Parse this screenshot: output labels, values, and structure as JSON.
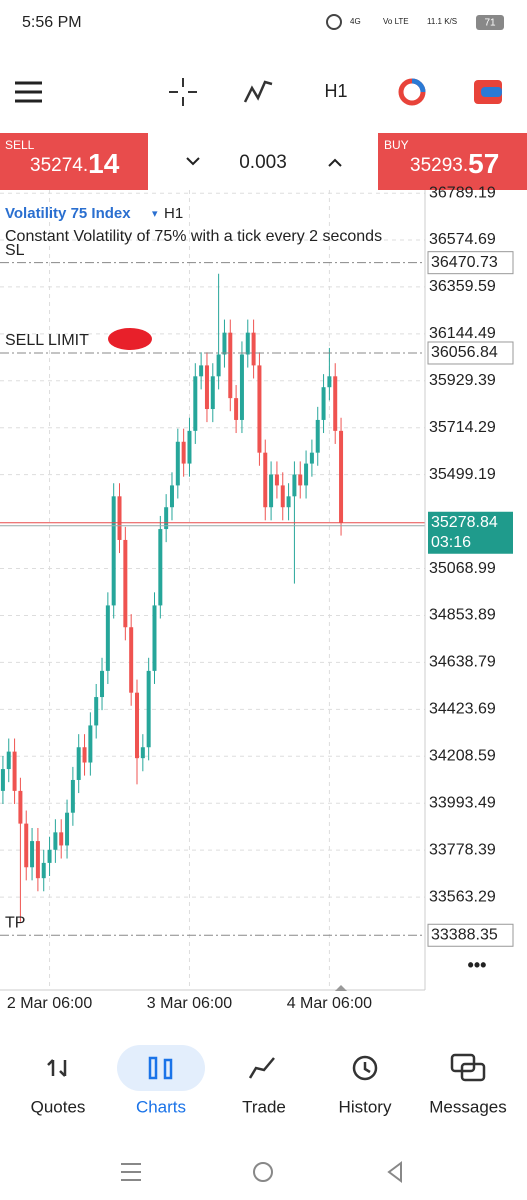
{
  "status_bar": {
    "time": "5:56 PM",
    "network": "4G",
    "volte": "Vo LTE",
    "speed": "11.1 K/S",
    "battery": "71"
  },
  "toolbar": {
    "timeframe": "H1"
  },
  "trade_panel": {
    "sell_label": "SELL",
    "sell_price": "35274.",
    "sell_price_big": "14",
    "volume": "0.003",
    "buy_label": "BUY",
    "buy_price": "35293.",
    "buy_price_big": "57"
  },
  "chart_data": {
    "type": "candlestick",
    "title": "Volatility 75 Index",
    "timeframe": "H1",
    "subtitle": "Constant Volatility of 75% with a tick every 2 seconds",
    "open": [
      34050,
      34150,
      34230,
      34050,
      33900,
      33700,
      33820,
      33650,
      33720,
      33780,
      33860,
      33800,
      33950,
      34100,
      34250,
      34180,
      34350,
      34480,
      34600,
      34900,
      35400,
      35200,
      34800,
      34500,
      34200,
      34250,
      34600,
      34900,
      35250,
      35350,
      35450,
      35650,
      35550,
      35700,
      35950,
      36000,
      35800,
      35950,
      36050,
      36150,
      35850,
      35750,
      36050,
      36150,
      36000,
      35600,
      35350,
      35500,
      35450,
      35350,
      35400,
      35500,
      35450,
      35550,
      35600,
      35750,
      35900,
      35950,
      35700
    ],
    "high": [
      34210,
      34290,
      34290,
      34110,
      33960,
      33880,
      33880,
      33780,
      33840,
      33920,
      33920,
      34010,
      34160,
      34310,
      34310,
      34410,
      34540,
      34660,
      34960,
      35460,
      35460,
      35260,
      34860,
      34560,
      34310,
      34660,
      34960,
      35310,
      35410,
      35510,
      35710,
      35710,
      35760,
      36010,
      36060,
      36060,
      36010,
      36420,
      36210,
      36210,
      35910,
      36110,
      36210,
      36210,
      36060,
      35660,
      35560,
      35560,
      35510,
      35460,
      35560,
      35560,
      35610,
      35660,
      35810,
      35960,
      36080,
      36010,
      35760
    ],
    "low": [
      33990,
      34090,
      33990,
      33450,
      33640,
      33640,
      33590,
      33590,
      33660,
      33720,
      33740,
      33740,
      33890,
      34040,
      34120,
      34120,
      34290,
      34420,
      34540,
      34840,
      35140,
      34740,
      34440,
      34080,
      34140,
      34190,
      34540,
      34840,
      35190,
      35290,
      35390,
      35490,
      35490,
      35640,
      35890,
      35740,
      35740,
      35890,
      35990,
      35790,
      35690,
      35690,
      35990,
      35940,
      35540,
      35290,
      35290,
      35390,
      35290,
      35290,
      35000,
      35390,
      35390,
      35490,
      35540,
      35690,
      35840,
      35640,
      35220
    ],
    "close": [
      34150,
      34230,
      34050,
      33900,
      33700,
      33820,
      33650,
      33720,
      33780,
      33860,
      33800,
      33950,
      34100,
      34250,
      34180,
      34350,
      34480,
      34600,
      34900,
      35400,
      35200,
      34800,
      34500,
      34200,
      34250,
      34600,
      34900,
      35250,
      35350,
      35450,
      35650,
      35550,
      35700,
      35950,
      36000,
      35800,
      35950,
      36050,
      36150,
      35850,
      35750,
      36050,
      36150,
      36000,
      35600,
      35350,
      35500,
      35450,
      35350,
      35400,
      35500,
      35450,
      35550,
      35600,
      35750,
      35900,
      35950,
      35700,
      35278.84
    ],
    "up_color": "#26a69a",
    "down_color": "#ef5350",
    "ylim": [
      33137.5,
      36803.8
    ],
    "yticks": [
      36789.19,
      36574.69,
      36359.59,
      36144.49,
      35929.39,
      35714.29,
      35499.19,
      35068.99,
      34853.89,
      34638.79,
      34423.69,
      34208.59,
      33993.49,
      33778.39,
      33563.29
    ],
    "xlim": [
      -0.5,
      72.4
    ],
    "xticks": [
      {
        "value": 8,
        "label": "2 Mar 06:00"
      },
      {
        "value": 32,
        "label": "3 Mar 06:00"
      },
      {
        "value": 56,
        "label": "4 Mar 06:00"
      }
    ],
    "grid": true,
    "levels": [
      {
        "label": "SL",
        "value": 36470.73
      },
      {
        "label": "SELL LIMIT",
        "value": 36056.84
      },
      {
        "label": "TP",
        "value": 33388.35
      }
    ],
    "current_price": 35278.84,
    "countdown": "03:16"
  },
  "nav": {
    "items": [
      "Quotes",
      "Charts",
      "Trade",
      "History",
      "Messages"
    ],
    "active": 1
  }
}
